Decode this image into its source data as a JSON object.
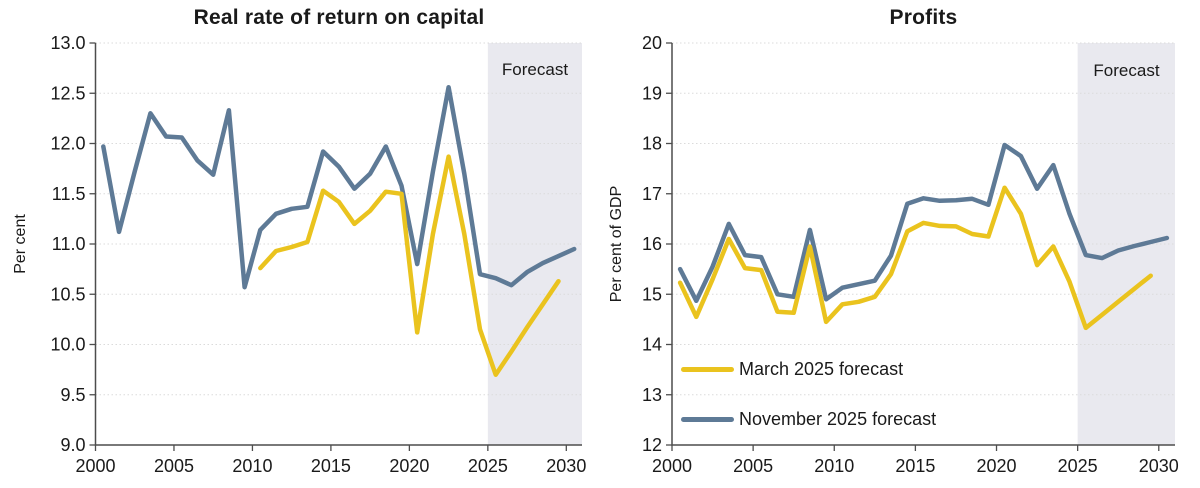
{
  "page": {
    "background": "#FFFFFF"
  },
  "colors": {
    "grid": "#DBDBDB",
    "axis": "#4D4D4D",
    "text": "#1A1A1A"
  },
  "forecast_band": {
    "fill": "#E9E9EF"
  },
  "legend": {
    "position": "inside-lower-left-of-profits-panel",
    "items": [
      {
        "label": "March 2025 forecast",
        "color": "#EAC31E"
      },
      {
        "label": "November 2025 forecast",
        "color": "#5E7A96"
      }
    ]
  },
  "chart_data": [
    {
      "type": "line",
      "title": "Real rate of return on capital",
      "xlabel": "",
      "ylabel": "Per cent",
      "ylim": [
        9.0,
        13.0
      ],
      "ytick_step": 0.5,
      "ytick_decimals": 1,
      "xlim": [
        2000,
        2030
      ],
      "xticks": [
        2000,
        2005,
        2010,
        2015,
        2020,
        2025,
        2030
      ],
      "grid": "horizontal-dotted",
      "forecast_start": 2025,
      "forecast_label": "Forecast",
      "series": [
        {
          "name": "November 2025 forecast",
          "color": "#5E7A96",
          "start_year": 2000,
          "end_year": 2030,
          "values": [
            11.97,
            11.12,
            11.72,
            12.3,
            12.07,
            12.06,
            11.83,
            11.69,
            12.33,
            10.57,
            11.14,
            11.3,
            11.35,
            11.37,
            11.92,
            11.77,
            11.55,
            11.7,
            11.97,
            11.58,
            10.8,
            11.72,
            12.56,
            11.7,
            10.7,
            10.66,
            10.59,
            10.72,
            10.81,
            10.88,
            10.95
          ]
        },
        {
          "name": "March 2025 forecast",
          "color": "#EAC31E",
          "start_year": 2010,
          "end_year": 2029,
          "values": [
            10.76,
            10.93,
            10.97,
            11.02,
            11.53,
            11.42,
            11.2,
            11.33,
            11.52,
            11.5,
            10.12,
            11.1,
            11.87,
            11.1,
            10.15,
            9.7,
            9.93,
            10.17,
            10.4,
            10.63
          ]
        }
      ]
    },
    {
      "type": "line",
      "title": "Profits",
      "xlabel": "",
      "ylabel": "Per cent of GDP",
      "ylim": [
        12,
        20
      ],
      "ytick_step": 1,
      "ytick_decimals": 0,
      "xlim": [
        2000,
        2030
      ],
      "xticks": [
        2000,
        2005,
        2010,
        2015,
        2020,
        2025,
        2030
      ],
      "grid": "horizontal-dotted",
      "forecast_start": 2025,
      "forecast_label": "Forecast",
      "series": [
        {
          "name": "November 2025 forecast",
          "color": "#5E7A96",
          "start_year": 2000,
          "end_year": 2030,
          "values": [
            15.5,
            14.87,
            15.55,
            16.4,
            15.78,
            15.74,
            15.0,
            14.95,
            16.28,
            14.9,
            15.13,
            15.2,
            15.27,
            15.77,
            16.8,
            16.91,
            16.86,
            16.87,
            16.9,
            16.78,
            17.97,
            17.75,
            17.1,
            17.57,
            16.6,
            15.78,
            15.72,
            15.87,
            15.96,
            16.04,
            16.12
          ]
        },
        {
          "name": "March 2025 forecast",
          "color": "#EAC31E",
          "start_year": 2000,
          "end_year": 2029,
          "values": [
            15.23,
            14.55,
            15.3,
            16.1,
            15.52,
            15.48,
            14.65,
            14.63,
            15.95,
            14.45,
            14.8,
            14.85,
            14.95,
            15.4,
            16.25,
            16.42,
            16.36,
            16.35,
            16.2,
            16.15,
            17.12,
            16.6,
            15.58,
            15.95,
            15.25,
            14.33,
            14.59,
            14.85,
            15.11,
            15.37
          ]
        }
      ]
    }
  ]
}
